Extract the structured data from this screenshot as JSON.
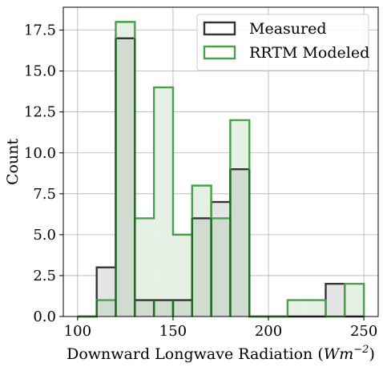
{
  "chart_data": {
    "type": "histogram",
    "bin_edges": [
      100,
      110,
      120,
      130,
      140,
      150,
      160,
      170,
      180,
      190,
      200,
      210,
      220,
      230,
      240,
      250
    ],
    "series": [
      {
        "name": "Measured",
        "counts": [
          0,
          3,
          17,
          1,
          1,
          1,
          6,
          7,
          9,
          0,
          0,
          0,
          0,
          2,
          0
        ],
        "edge_color": "#333333",
        "fill_color": "#e5e5e5"
      },
      {
        "name": "RRTM Modeled",
        "counts": [
          0,
          1,
          18,
          6,
          14,
          5,
          8,
          6,
          12,
          0,
          0,
          1,
          1,
          0,
          2
        ],
        "edge_color": "#4aa04a",
        "fill_color": "#e6f1e6"
      }
    ],
    "overlap_color": "#d0dcd0",
    "overlap_edge_color": "#1f6b1f",
    "xlabel": "Downward Longwave Radiation ",
    "xlabel_math_base": "Wm",
    "xlabel_math_exp": "−2",
    "ylabel": "Count",
    "xlim": [
      92.5,
      257.5
    ],
    "ylim": [
      0,
      18.9
    ],
    "xticks": [
      100,
      150,
      200,
      250
    ],
    "xtick_labels": [
      "100",
      "150",
      "200",
      "250"
    ],
    "yticks": [
      0,
      2.5,
      5,
      7.5,
      10,
      12.5,
      15,
      17.5
    ],
    "ytick_labels": [
      "0.0",
      "2.5",
      "5.0",
      "7.5",
      "10.0",
      "12.5",
      "15.0",
      "17.5"
    ],
    "grid": true,
    "legend_position": "top-right"
  }
}
